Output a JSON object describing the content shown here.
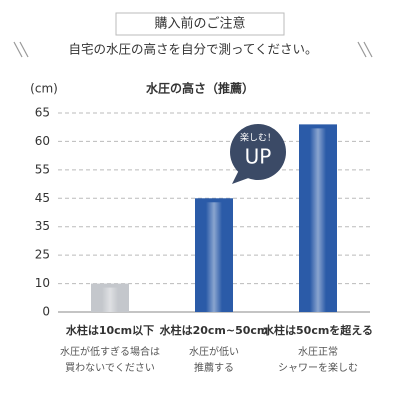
{
  "header": {
    "title": "購入前のご注意",
    "subtitle": "自宅の水圧の高さを自分で測ってください。"
  },
  "chart_data": {
    "type": "bar",
    "title": "水圧の高さ（推薦）",
    "y_label": "(cm)",
    "categories": [
      "水柱は10cm以下",
      "水柱は20cm~50cm",
      "水柱は50cmを超える"
    ],
    "descriptions": [
      [
        "水圧が低すぎる場合は",
        "買わないでください"
      ],
      [
        "水圧が低い",
        "推薦する"
      ],
      [
        "水圧正常",
        "シャワーを楽しむ"
      ]
    ],
    "values": [
      10,
      45,
      63
    ],
    "colors": [
      "#c4c7cc",
      "#2b5ba8",
      "#2b5ba8"
    ],
    "ylim": [
      0,
      65
    ],
    "yticks": [
      0,
      10,
      25,
      35,
      45,
      55,
      60,
      65
    ],
    "grid": true,
    "annotation": {
      "text": "楽しむ！",
      "emphasis": "UP"
    }
  }
}
